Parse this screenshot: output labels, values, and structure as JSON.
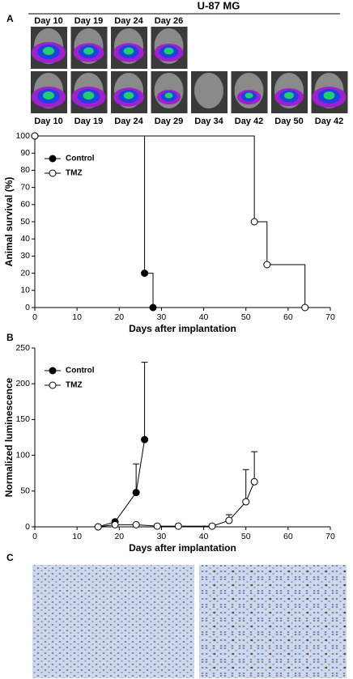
{
  "title": "U-87 MG",
  "panels": {
    "a": "A",
    "b": "B",
    "c": "C"
  },
  "images_row1": [
    "Day 10",
    "Day 19",
    "Day 24",
    "Day 26"
  ],
  "images_row2": [
    "Day 10",
    "Day 19",
    "Day 24",
    "Day 29",
    "Day 34",
    "Day 42",
    "Day 50",
    "Day 42"
  ],
  "chart_data": [
    {
      "type": "line",
      "step": true,
      "xlabel": "Days after implantation",
      "ylabel": "Animal survival (%)",
      "xlim": [
        0,
        70
      ],
      "ylim": [
        0,
        100
      ],
      "xticks": [
        0,
        10,
        20,
        30,
        40,
        50,
        60,
        70
      ],
      "yticks": [
        0,
        10,
        20,
        30,
        40,
        50,
        60,
        70,
        80,
        90,
        100
      ],
      "legend": "upper left",
      "series": [
        {
          "name": "Control",
          "color": "#000000",
          "marker_fill": "#000000",
          "x": [
            0,
            26,
            28
          ],
          "values": [
            100,
            20,
            0
          ]
        },
        {
          "name": "TMZ",
          "color": "#000000",
          "marker_fill": "#ffffff",
          "x": [
            0,
            52,
            55,
            64
          ],
          "values": [
            100,
            50,
            25,
            0
          ]
        }
      ]
    },
    {
      "type": "line",
      "step": false,
      "xlabel": "Days after implantation",
      "ylabel": "Normalized luminescence",
      "xlim": [
        0,
        70
      ],
      "ylim": [
        0,
        250
      ],
      "xticks": [
        0,
        10,
        20,
        30,
        40,
        50,
        60,
        70
      ],
      "yticks": [
        0,
        50,
        100,
        150,
        200,
        250
      ],
      "legend": "upper left",
      "series": [
        {
          "name": "Control",
          "color": "#000000",
          "marker_fill": "#000000",
          "x": [
            15,
            19,
            24,
            26
          ],
          "values": [
            0,
            7,
            48,
            122
          ],
          "errors": [
            0,
            2,
            40,
            108
          ]
        },
        {
          "name": "TMZ",
          "color": "#000000",
          "marker_fill": "#ffffff",
          "x": [
            15,
            19,
            24,
            29,
            34,
            42,
            46,
            50,
            52
          ],
          "values": [
            0,
            3,
            3,
            1,
            1,
            1,
            9,
            35,
            63
          ],
          "errors": [
            0,
            0,
            0,
            0,
            0,
            0,
            8,
            45,
            42
          ]
        }
      ]
    }
  ]
}
